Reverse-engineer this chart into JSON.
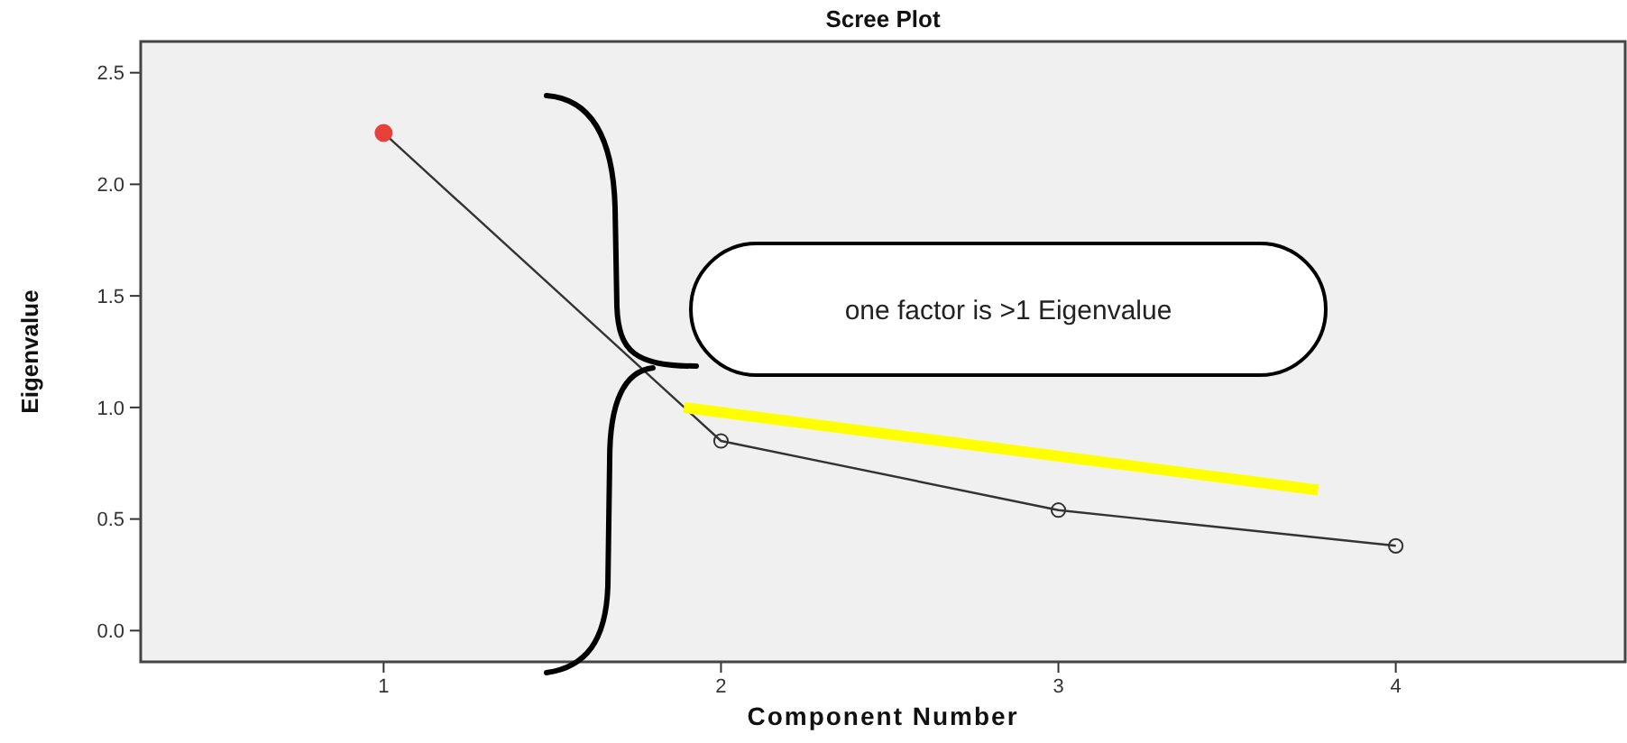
{
  "chart_data": {
    "type": "line",
    "title": "Scree Plot",
    "xlabel": "Component Number",
    "ylabel": "Eigenvalue",
    "x": [
      1,
      2,
      3,
      4
    ],
    "series": [
      {
        "color": "#333333",
        "values": [
          2.23,
          0.85,
          0.54,
          0.38
        ],
        "colors": [
          "#e8413c",
          "#333333",
          "#333333",
          "#333333"
        ]
      },
      {
        "color": "#ffff00",
        "x": [
          1.89,
          3.77
        ],
        "values": [
          1.0,
          0.63
        ],
        "marker": "none"
      }
    ],
    "xlim": [
      0.28,
      4.68
    ],
    "ylim": [
      -0.14,
      2.64
    ],
    "xticks": [
      1,
      2,
      3,
      4
    ],
    "yticks": [
      {
        "value": 0,
        "label": "0.0"
      },
      0.5,
      {
        "value": 1,
        "label": "1.0"
      },
      1.5,
      {
        "value": 2,
        "label": "2.0"
      },
      2.5
    ],
    "marker": "circle",
    "grid": false,
    "annotations": [
      "one factor is >1 Eigenvalue"
    ]
  }
}
